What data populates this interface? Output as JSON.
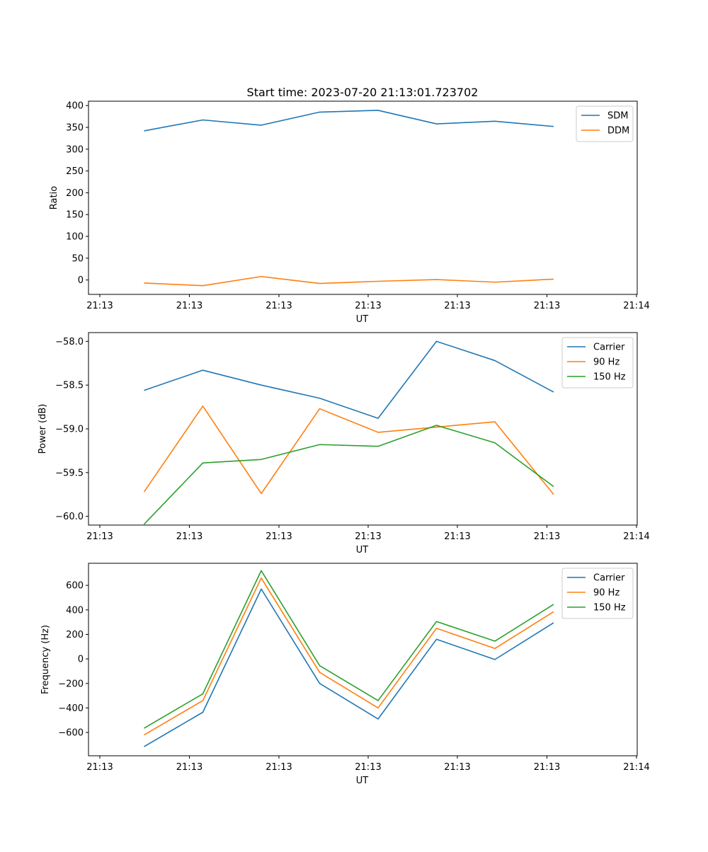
{
  "chart_data": [
    {
      "type": "line",
      "title": "Start time: 2023-07-20 21:13:01.723702",
      "xlabel": "UT",
      "ylabel": "Ratio",
      "x_tick_labels": [
        "21:13",
        "21:13",
        "21:13",
        "21:13",
        "21:13",
        "21:13",
        "21:13"
      ],
      "x_last_tick_label": "21:14",
      "y_ticks": [
        0,
        50,
        100,
        150,
        200,
        250,
        300,
        350,
        400
      ],
      "ylim": [
        -33,
        410
      ],
      "x": [
        1,
        2,
        3,
        4,
        5,
        6,
        7,
        8
      ],
      "series": [
        {
          "name": "SDM",
          "color": "#1f77b4",
          "values": [
            342,
            367,
            355,
            385,
            389,
            358,
            364,
            352
          ]
        },
        {
          "name": "DDM",
          "color": "#ff7f0e",
          "values": [
            -7,
            -13,
            8,
            -8,
            -3,
            1,
            -5,
            2
          ]
        }
      ]
    },
    {
      "type": "line",
      "xlabel": "UT",
      "ylabel": "Power (dB)",
      "x_tick_labels": [
        "21:13",
        "21:13",
        "21:13",
        "21:13",
        "21:13",
        "21:13",
        "21:13"
      ],
      "x_last_tick_label": "21:14",
      "y_ticks": [
        -60.0,
        -59.5,
        -59.0,
        -58.5,
        -58.0
      ],
      "y_tick_labels": [
        "−60.0",
        "−59.5",
        "−59.0",
        "−58.5",
        "−58.0"
      ],
      "ylim": [
        -60.1,
        -57.9
      ],
      "x": [
        1,
        2,
        3,
        4,
        5,
        6,
        7,
        8
      ],
      "series": [
        {
          "name": "Carrier",
          "color": "#1f77b4",
          "values": [
            -58.56,
            -58.33,
            -58.5,
            -58.65,
            -58.88,
            -58.0,
            -58.22,
            -58.58
          ]
        },
        {
          "name": "90 Hz",
          "color": "#ff7f0e",
          "values": [
            -59.72,
            -58.74,
            -59.74,
            -58.77,
            -59.04,
            -58.98,
            -58.92,
            -59.75
          ]
        },
        {
          "name": "150 Hz",
          "color": "#2ca02c",
          "values": [
            -60.09,
            -59.39,
            -59.35,
            -59.18,
            -59.2,
            -58.96,
            -59.16,
            -59.66
          ]
        }
      ]
    },
    {
      "type": "line",
      "xlabel": "UT",
      "ylabel": "Frequency (Hz)",
      "x_tick_labels": [
        "21:13",
        "21:13",
        "21:13",
        "21:13",
        "21:13",
        "21:13",
        "21:13"
      ],
      "x_last_tick_label": "21:14",
      "y_ticks": [
        -600,
        -400,
        -200,
        0,
        200,
        400,
        600
      ],
      "y_tick_labels": [
        "−600",
        "−400",
        "−200",
        "0",
        "200",
        "400",
        "600"
      ],
      "ylim": [
        -790,
        780
      ],
      "x": [
        1,
        2,
        3,
        4,
        5,
        6,
        7,
        8
      ],
      "series": [
        {
          "name": "Carrier",
          "color": "#1f77b4",
          "values": [
            -715,
            -435,
            570,
            -200,
            -490,
            160,
            -5,
            295
          ]
        },
        {
          "name": "90 Hz",
          "color": "#ff7f0e",
          "values": [
            -620,
            -340,
            660,
            -110,
            -400,
            250,
            85,
            385
          ]
        },
        {
          "name": "150 Hz",
          "color": "#2ca02c",
          "values": [
            -565,
            -285,
            720,
            -55,
            -340,
            305,
            145,
            445
          ]
        }
      ]
    }
  ]
}
